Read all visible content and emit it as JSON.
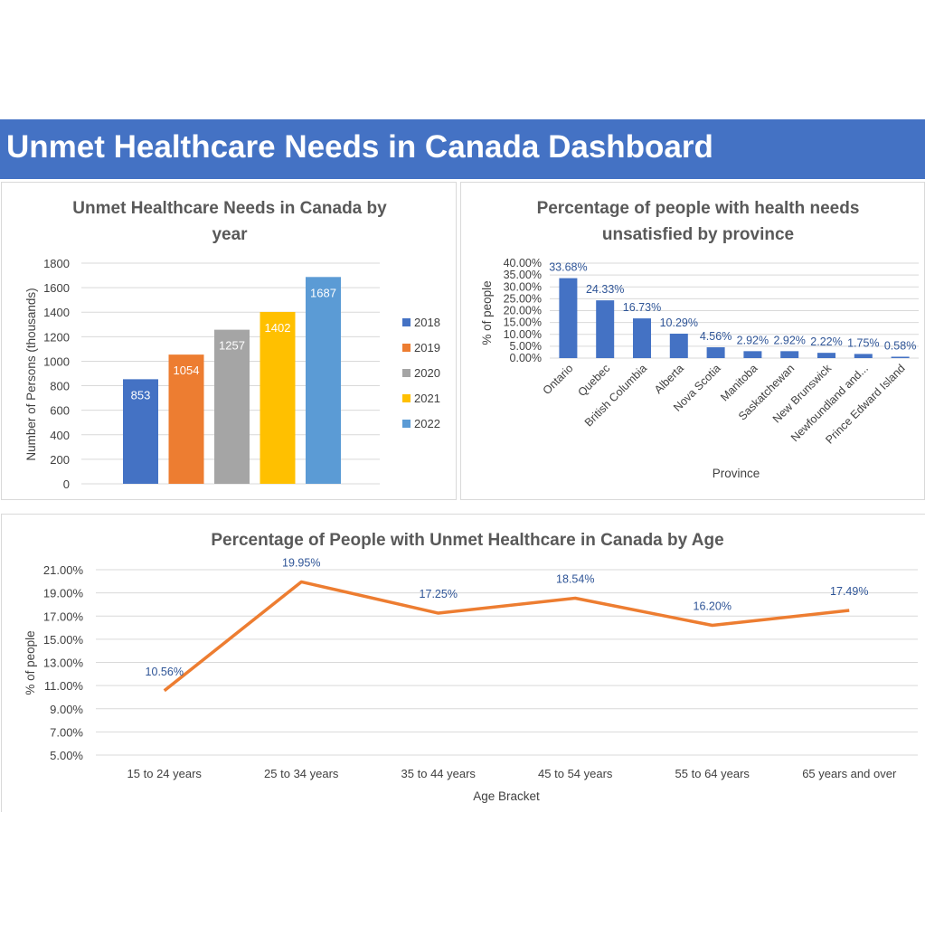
{
  "dashboard": {
    "title": "Unmet Healthcare Needs in Canada Dashboard"
  },
  "colors": {
    "banner": "#4472c4",
    "province_bar": "#4472c4",
    "age_line": "#ed7d31",
    "data_label": "#2f5597"
  },
  "chart_data": [
    {
      "type": "bar",
      "title_lines": [
        "Unmet Healthcare Needs in Canada by",
        "year"
      ],
      "xlabel": "",
      "ylabel": "Number of Persons (thousands)",
      "ylim": [
        0,
        1800
      ],
      "yticks": [
        "0",
        "200",
        "400",
        "600",
        "800",
        "1000",
        "1200",
        "1400",
        "1600",
        "1800"
      ],
      "grid": true,
      "legend": "right",
      "series": [
        {
          "name": "2018",
          "value": 853,
          "color": "#4472c4"
        },
        {
          "name": "2019",
          "value": 1054,
          "color": "#ed7d31"
        },
        {
          "name": "2020",
          "value": 1257,
          "color": "#a5a5a5"
        },
        {
          "name": "2021",
          "value": 1402,
          "color": "#ffc000"
        },
        {
          "name": "2022",
          "value": 1687,
          "color": "#5b9bd5"
        }
      ]
    },
    {
      "type": "bar",
      "title_lines": [
        "Percentage of people with health needs",
        "unsatisfied by province"
      ],
      "xlabel": "Province",
      "ylabel": "% of people",
      "ylim": [
        0,
        40
      ],
      "yticks": [
        "0.00%",
        "5.00%",
        "10.00%",
        "15.00%",
        "20.00%",
        "25.00%",
        "30.00%",
        "35.00%",
        "40.00%"
      ],
      "grid": true,
      "categories": [
        "Ontario",
        "Quebec",
        "British Columbia",
        "Alberta",
        "Nova Scotia",
        "Manitoba",
        "Saskatchewan",
        "New Brunswick",
        "Newfoundland and...",
        "Prince Edward Island"
      ],
      "values": [
        33.68,
        24.33,
        16.73,
        10.29,
        4.56,
        2.92,
        2.92,
        2.22,
        1.75,
        0.58
      ],
      "value_labels": [
        "33.68%",
        "24.33%",
        "16.73%",
        "10.29%",
        "4.56%",
        "2.92%",
        "2.92%",
        "2.22%",
        "1.75%",
        "0.58%"
      ]
    },
    {
      "type": "line",
      "title_lines": [
        "Percentage of People with Unmet Healthcare in Canada by Age"
      ],
      "xlabel": "Age Bracket",
      "ylabel": "% of people",
      "ylim": [
        5,
        21
      ],
      "yticks": [
        "5.00%",
        "7.00%",
        "9.00%",
        "11.00%",
        "13.00%",
        "15.00%",
        "17.00%",
        "19.00%",
        "21.00%"
      ],
      "grid": true,
      "categories": [
        "15 to 24 years",
        "25 to 34 years",
        "35 to 44 years",
        "45 to 54 years",
        "55 to 64 years",
        "65 years and over"
      ],
      "values": [
        10.56,
        19.95,
        17.25,
        18.54,
        16.2,
        17.49
      ],
      "value_labels": [
        "10.56%",
        "19.95%",
        "17.25%",
        "18.54%",
        "16.20%",
        "17.49%"
      ]
    }
  ]
}
